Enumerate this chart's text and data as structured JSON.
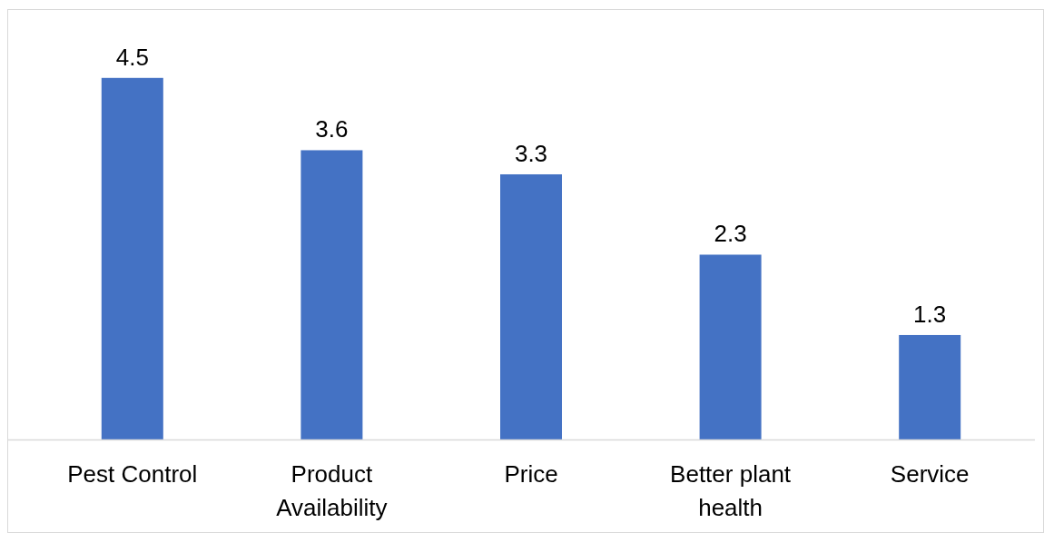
{
  "chart_data": {
    "type": "bar",
    "categories": [
      "Pest Control",
      "Product Availability",
      "Price",
      "Better plant health",
      "Service"
    ],
    "values": [
      4.5,
      3.6,
      3.3,
      2.3,
      1.3
    ],
    "color": "#4472c4",
    "data_labels": true
  }
}
